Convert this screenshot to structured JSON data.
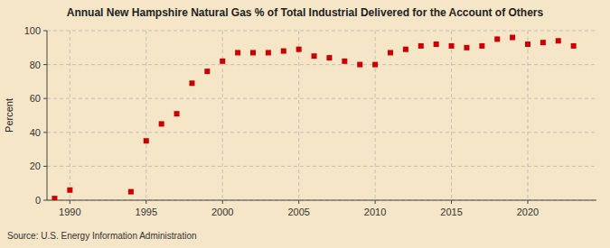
{
  "chart_data": {
    "type": "scatter",
    "title": "Annual New Hampshire Natural Gas % of Total Industrial Delivered for the Account of Others",
    "y_label": "Percent",
    "source": "Source: U.S. Energy Information Administration",
    "x": [
      1989,
      1990,
      1991,
      1992,
      1993,
      1994,
      1995,
      1996,
      1997,
      1998,
      1999,
      2000,
      2001,
      2002,
      2003,
      2004,
      2005,
      2006,
      2007,
      2008,
      2009,
      2010,
      2011,
      2012,
      2013,
      2014,
      2015,
      2016,
      2017,
      2018,
      2019,
      2020,
      2021,
      2022,
      2023
    ],
    "values": [
      1.0,
      6.0,
      null,
      null,
      null,
      5.0,
      35.0,
      45.0,
      51.0,
      69.0,
      76.0,
      82.0,
      87.0,
      87.0,
      87.0,
      88.0,
      89.0,
      85.0,
      84.0,
      82.0,
      80.0,
      80.0,
      87.0,
      89.0,
      91.0,
      92.0,
      91.0,
      90.0,
      91.0,
      95.0,
      96.0,
      92.0,
      93.0,
      94.0,
      91.0
    ],
    "color": "#cc0000",
    "marker": "square",
    "xlim": [
      1988.5,
      2024.5
    ],
    "ylim": [
      0,
      100
    ],
    "xticks": [
      1990,
      1995,
      2000,
      2005,
      2010,
      2015,
      2020
    ],
    "yticks": [
      0,
      20,
      40,
      60,
      80,
      100
    ],
    "grid": true
  }
}
